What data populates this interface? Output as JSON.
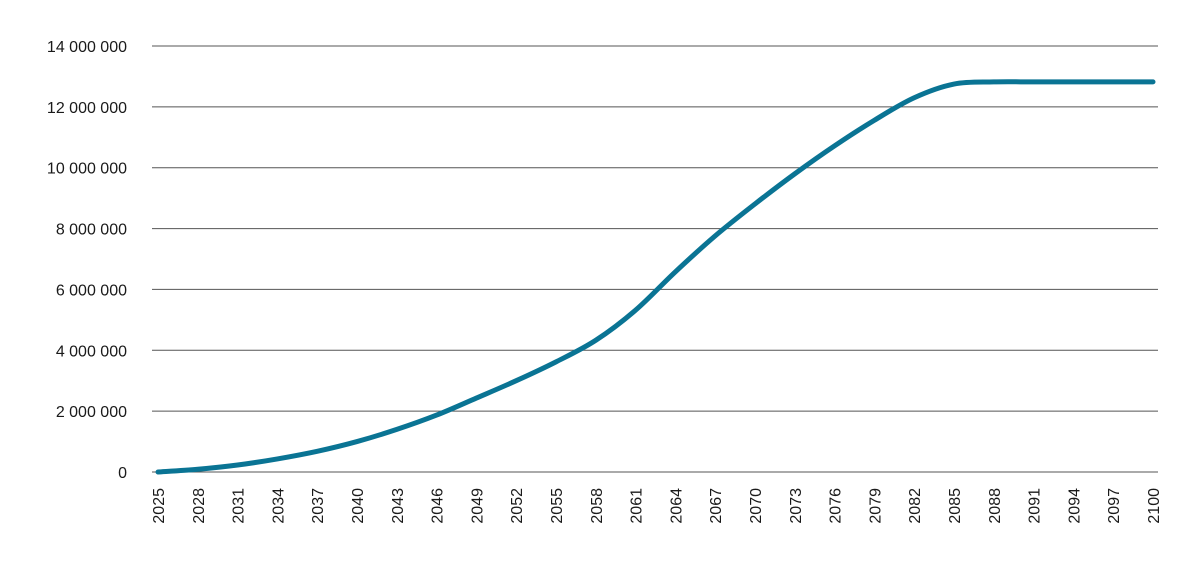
{
  "chart_data": {
    "type": "line",
    "title": "",
    "xlabel": "",
    "ylabel": "",
    "ylim": [
      0,
      14000000
    ],
    "xlim": [
      2025,
      2100
    ],
    "grid": "horizontal",
    "legend": "none",
    "y_ticks": [
      {
        "value": 0,
        "label": "0"
      },
      {
        "value": 2000000,
        "label": "2 000 000"
      },
      {
        "value": 4000000,
        "label": "4 000 000"
      },
      {
        "value": 6000000,
        "label": "6 000 000"
      },
      {
        "value": 8000000,
        "label": "8 000 000"
      },
      {
        "value": 10000000,
        "label": "10 000 000"
      },
      {
        "value": 12000000,
        "label": "12 000 000"
      },
      {
        "value": 14000000,
        "label": "14 000 000"
      }
    ],
    "x_ticks": [
      "2025",
      "2028",
      "2031",
      "2034",
      "2037",
      "2040",
      "2043",
      "2046",
      "2049",
      "2052",
      "2055",
      "2058",
      "2061",
      "2064",
      "2067",
      "2070",
      "2073",
      "2076",
      "2079",
      "2082",
      "2085",
      "2088",
      "2091",
      "2094",
      "2097",
      "2100"
    ],
    "series": [
      {
        "color": "#0a7494",
        "x": [
          2025,
          2028,
          2031,
          2034,
          2037,
          2040,
          2043,
          2046,
          2049,
          2052,
          2055,
          2058,
          2061,
          2064,
          2067,
          2070,
          2073,
          2076,
          2079,
          2082,
          2085,
          2088,
          2091,
          2094,
          2097,
          2100
        ],
        "values": [
          0,
          90000,
          230000,
          430000,
          680000,
          1000000,
          1400000,
          1870000,
          2430000,
          3000000,
          3620000,
          4330000,
          5320000,
          6580000,
          7760000,
          8810000,
          9800000,
          10720000,
          11560000,
          12300000,
          12750000,
          12820000,
          12820000,
          12820000,
          12820000,
          12820000
        ]
      }
    ]
  }
}
